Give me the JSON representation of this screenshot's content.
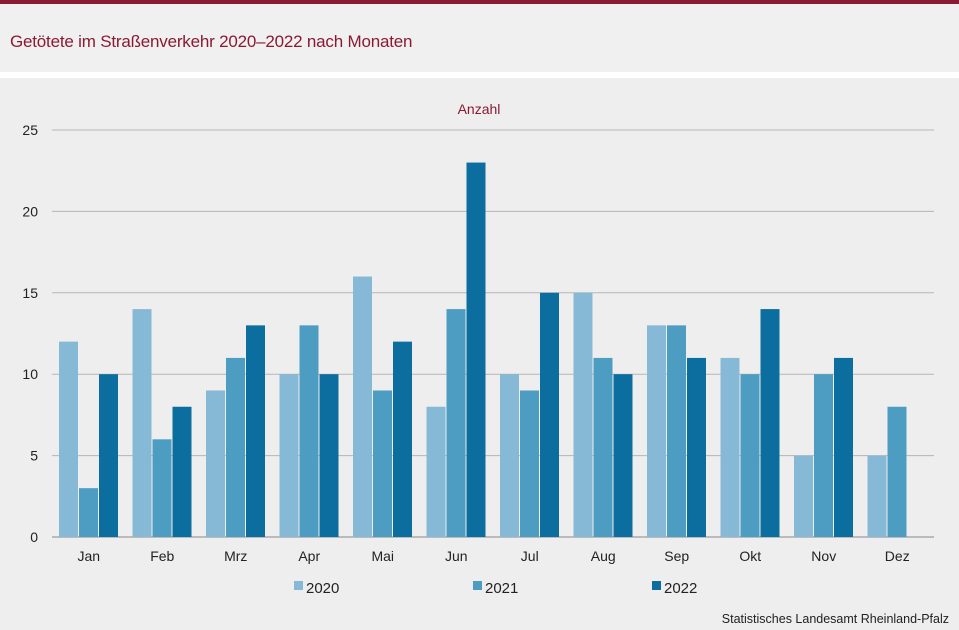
{
  "title": "Getötete im Straßenverkehr 2020–2022 nach Monaten",
  "source": "Statistisches Landesamt  Rheinland-Pfalz",
  "colors": {
    "accent": "#8a1a34",
    "s2020": "#85b9d6",
    "s2021": "#4d9dc3",
    "s2022": "#0b6e9f"
  },
  "chart_data": {
    "type": "bar",
    "ylabel": "Anzahl",
    "ylim": [
      0,
      25
    ],
    "yticks": [
      0,
      5,
      10,
      15,
      20,
      25
    ],
    "grid": true,
    "legend_position": "bottom",
    "categories": [
      "Jan",
      "Feb",
      "Mrz",
      "Apr",
      "Mai",
      "Jun",
      "Jul",
      "Aug",
      "Sep",
      "Okt",
      "Nov",
      "Dez"
    ],
    "series": [
      {
        "name": "2020",
        "values": [
          12,
          14,
          9,
          10,
          16,
          8,
          10,
          15,
          13,
          11,
          5,
          5
        ]
      },
      {
        "name": "2021",
        "values": [
          3,
          6,
          11,
          13,
          9,
          14,
          9,
          11,
          13,
          10,
          10,
          8
        ]
      },
      {
        "name": "2022",
        "values": [
          10,
          8,
          13,
          10,
          12,
          23,
          15,
          10,
          11,
          14,
          11,
          null
        ]
      }
    ]
  }
}
